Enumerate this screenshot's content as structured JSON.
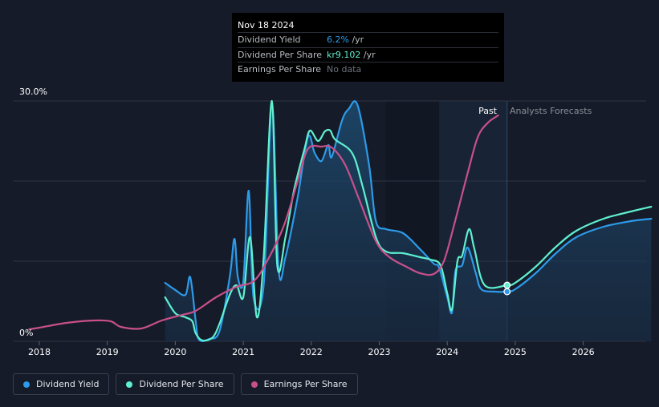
{
  "tooltip": {
    "date": "Nov 18 2024",
    "rows": [
      {
        "label": "Dividend Yield",
        "value": "6.2%",
        "unit": "/yr"
      },
      {
        "label": "Dividend Per Share",
        "value": "kr9.102",
        "unit": "/yr"
      },
      {
        "label": "Earnings Per Share",
        "value": "No data",
        "unit": ""
      }
    ]
  },
  "past_label": "Past",
  "forecast_label": "Analysts Forecasts",
  "legend": [
    {
      "label": "Dividend Yield",
      "color": "#2d9bea"
    },
    {
      "label": "Dividend Per Share",
      "color": "#5ff0d0"
    },
    {
      "label": "Earnings Per Share",
      "color": "#c8508a"
    }
  ],
  "chart_data": {
    "type": "line",
    "title": "",
    "xlabel": "",
    "ylabel": "",
    "xlim": [
      2017.9,
      2027.0
    ],
    "ylim": [
      0,
      30
    ],
    "y_ticks": [
      {
        "value": 0,
        "label": "0%"
      },
      {
        "value": 30,
        "label": "30.0%"
      }
    ],
    "x_ticks": [
      2018,
      2019,
      2020,
      2021,
      2022,
      2023,
      2024,
      2025,
      2026
    ],
    "x_tick_labels": [
      "2018",
      "2019",
      "2020",
      "2021",
      "2022",
      "2023",
      "2024",
      "2025",
      "2026"
    ],
    "forecast_start": 2024.88,
    "highlight_start": 2023.88,
    "series": [
      {
        "name": "Dividend Yield",
        "color": "#2d9bea",
        "area": true,
        "points": [
          [
            2019.85,
            7.3
          ],
          [
            2020.0,
            6.4
          ],
          [
            2020.15,
            5.8
          ],
          [
            2020.22,
            8.0
          ],
          [
            2020.3,
            2.5
          ],
          [
            2020.35,
            0.2
          ],
          [
            2020.5,
            0.3
          ],
          [
            2020.65,
            1.3
          ],
          [
            2020.8,
            8.0
          ],
          [
            2020.87,
            12.8
          ],
          [
            2020.92,
            8.0
          ],
          [
            2021.0,
            7.5
          ],
          [
            2021.08,
            18.8
          ],
          [
            2021.15,
            5.5
          ],
          [
            2021.3,
            7.0
          ],
          [
            2021.42,
            29.7
          ],
          [
            2021.52,
            9.0
          ],
          [
            2021.62,
            10.5
          ],
          [
            2021.8,
            18.0
          ],
          [
            2021.95,
            25.5
          ],
          [
            2022.05,
            23.5
          ],
          [
            2022.15,
            22.5
          ],
          [
            2022.25,
            24.5
          ],
          [
            2022.3,
            23.0
          ],
          [
            2022.45,
            27.5
          ],
          [
            2022.55,
            29.0
          ],
          [
            2022.68,
            29.5
          ],
          [
            2022.85,
            22.0
          ],
          [
            2022.95,
            15.0
          ],
          [
            2023.1,
            14.0
          ],
          [
            2023.35,
            13.5
          ],
          [
            2023.6,
            11.5
          ],
          [
            2023.8,
            9.7
          ],
          [
            2023.88,
            9.2
          ],
          [
            2024.0,
            5.5
          ],
          [
            2024.07,
            3.6
          ],
          [
            2024.12,
            8.8
          ],
          [
            2024.22,
            9.5
          ],
          [
            2024.3,
            11.7
          ],
          [
            2024.42,
            8.5
          ],
          [
            2024.5,
            6.5
          ],
          [
            2024.7,
            6.2
          ],
          [
            2024.88,
            6.2
          ],
          [
            2025.0,
            6.5
          ],
          [
            2025.3,
            8.5
          ],
          [
            2025.6,
            11.0
          ],
          [
            2025.9,
            13.0
          ],
          [
            2026.3,
            14.3
          ],
          [
            2026.7,
            15.0
          ],
          [
            2027.0,
            15.3
          ]
        ]
      },
      {
        "name": "Dividend Per Share",
        "color": "#5ff0d0",
        "area": false,
        "points": [
          [
            2019.85,
            5.5
          ],
          [
            2020.0,
            3.5
          ],
          [
            2020.15,
            3.0
          ],
          [
            2020.25,
            2.5
          ],
          [
            2020.3,
            1.0
          ],
          [
            2020.4,
            0.1
          ],
          [
            2020.55,
            0.5
          ],
          [
            2020.65,
            2.2
          ],
          [
            2020.8,
            5.8
          ],
          [
            2020.9,
            7.0
          ],
          [
            2021.0,
            5.5
          ],
          [
            2021.1,
            13.0
          ],
          [
            2021.2,
            3.0
          ],
          [
            2021.3,
            10.5
          ],
          [
            2021.42,
            30.0
          ],
          [
            2021.5,
            9.5
          ],
          [
            2021.62,
            13.0
          ],
          [
            2021.75,
            19.0
          ],
          [
            2021.9,
            24.0
          ],
          [
            2021.98,
            26.3
          ],
          [
            2022.1,
            25.0
          ],
          [
            2022.2,
            26.2
          ],
          [
            2022.28,
            26.3
          ],
          [
            2022.35,
            25.2
          ],
          [
            2022.6,
            23.5
          ],
          [
            2022.75,
            19.5
          ],
          [
            2022.95,
            13.0
          ],
          [
            2023.1,
            11.2
          ],
          [
            2023.35,
            11.0
          ],
          [
            2023.6,
            10.5
          ],
          [
            2023.75,
            10.2
          ],
          [
            2023.9,
            9.5
          ],
          [
            2024.0,
            6.0
          ],
          [
            2024.07,
            4.0
          ],
          [
            2024.15,
            10.0
          ],
          [
            2024.22,
            10.7
          ],
          [
            2024.32,
            14.0
          ],
          [
            2024.4,
            11.5
          ],
          [
            2024.55,
            7.0
          ],
          [
            2024.88,
            7.0
          ],
          [
            2025.0,
            7.3
          ],
          [
            2025.3,
            9.3
          ],
          [
            2025.6,
            11.8
          ],
          [
            2025.9,
            13.8
          ],
          [
            2026.3,
            15.3
          ],
          [
            2026.7,
            16.2
          ],
          [
            2027.0,
            16.8
          ]
        ]
      },
      {
        "name": "Earnings Per Share",
        "color": "#c8508a",
        "area": false,
        "points": [
          [
            2017.85,
            1.5
          ],
          [
            2018.0,
            1.7
          ],
          [
            2018.4,
            2.3
          ],
          [
            2018.8,
            2.6
          ],
          [
            2019.05,
            2.5
          ],
          [
            2019.2,
            1.8
          ],
          [
            2019.5,
            1.6
          ],
          [
            2019.8,
            2.6
          ],
          [
            2020.1,
            3.3
          ],
          [
            2020.3,
            3.8
          ],
          [
            2020.6,
            5.5
          ],
          [
            2020.9,
            6.8
          ],
          [
            2021.15,
            7.5
          ],
          [
            2021.35,
            10.0
          ],
          [
            2021.6,
            14.5
          ],
          [
            2021.8,
            20.0
          ],
          [
            2021.95,
            24.0
          ],
          [
            2022.15,
            24.3
          ],
          [
            2022.3,
            24.2
          ],
          [
            2022.5,
            22.0
          ],
          [
            2022.7,
            17.8
          ],
          [
            2022.95,
            12.5
          ],
          [
            2023.15,
            10.5
          ],
          [
            2023.4,
            9.3
          ],
          [
            2023.6,
            8.5
          ],
          [
            2023.8,
            8.4
          ],
          [
            2023.95,
            10.0
          ],
          [
            2024.1,
            14.5
          ],
          [
            2024.3,
            21.0
          ],
          [
            2024.45,
            25.5
          ],
          [
            2024.6,
            27.3
          ],
          [
            2024.75,
            28.2
          ]
        ]
      }
    ],
    "markers": [
      {
        "series": "Dividend Yield",
        "x": 2024.88,
        "y": 6.2
      },
      {
        "series": "Dividend Per Share",
        "x": 2024.88,
        "y": 7.0
      }
    ]
  }
}
